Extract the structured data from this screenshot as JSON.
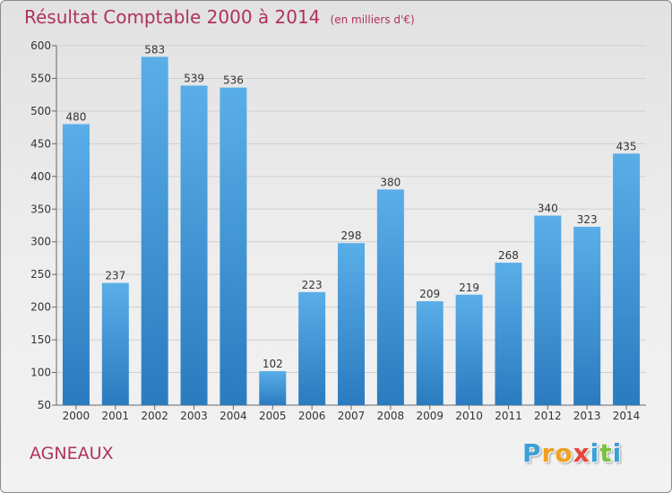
{
  "chart_data": {
    "type": "bar",
    "title": "Résultat Comptable 2000 à 2014",
    "subtitle": "(en milliers d'€)",
    "categories": [
      "2000",
      "2001",
      "2002",
      "2003",
      "2004",
      "2005",
      "2006",
      "2007",
      "2008",
      "2009",
      "2010",
      "2011",
      "2012",
      "2013",
      "2014"
    ],
    "values": [
      480,
      237,
      583,
      539,
      536,
      102,
      223,
      298,
      380,
      209,
      219,
      268,
      340,
      323,
      435
    ],
    "yticks": [
      50,
      100,
      150,
      200,
      250,
      300,
      350,
      400,
      450,
      500,
      550,
      600
    ],
    "ylim": [
      50,
      600
    ],
    "xlabel": "",
    "ylabel": "",
    "grid": true,
    "bar_color_top": "#5aaee8",
    "bar_color_bottom": "#2a7bbf"
  },
  "place_name": "AGNEAUX",
  "logo": {
    "letters": [
      "P",
      "r",
      "o",
      "x",
      "i",
      "t",
      "i"
    ],
    "colors": [
      "#3aa0d8",
      "#f0a020",
      "#f0a020",
      "#e8453c",
      "#3aa0d8",
      "#7cc242",
      "#3aa0d8"
    ]
  }
}
